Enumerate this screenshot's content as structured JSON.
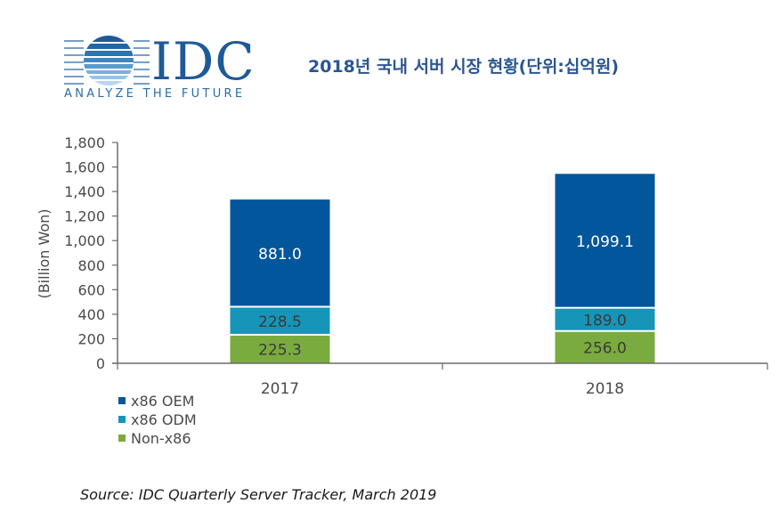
{
  "logo": {
    "brand": "IDC",
    "tagline": "ANALYZE THE FUTURE"
  },
  "header": {
    "title": "2018년 국내 서버 시장 현황(단위:십억원)"
  },
  "footer": {
    "source": "Source: IDC Quarterly Server Tracker, March 2019"
  },
  "chart_data": {
    "type": "bar",
    "stacked": true,
    "title": "2018년 국내 서버 시장 현황(단위:십억원)",
    "xlabel": "",
    "ylabel": "(Billion Won)",
    "ylim": [
      0,
      1800
    ],
    "yticks": [
      0,
      200,
      400,
      600,
      800,
      1000,
      1200,
      1400,
      1600,
      1800
    ],
    "ytick_labels": [
      "0",
      "200",
      "400",
      "600",
      "800",
      "1,000",
      "1,200",
      "1,400",
      "1,600",
      "1,800"
    ],
    "grid": false,
    "legend_position": "bottom-left",
    "categories": [
      "2017",
      "2018"
    ],
    "series": [
      {
        "name": "Non-x86",
        "color": "#7aab3e",
        "label_color": "#3a3a3a",
        "values": [
          225.3,
          256.0
        ],
        "labels": [
          "225.3",
          "256.0"
        ]
      },
      {
        "name": "x86 ODM",
        "color": "#1695b8",
        "label_color": "#3a3a3a",
        "values": [
          228.5,
          189.0
        ],
        "labels": [
          "228.5",
          "189.0"
        ]
      },
      {
        "name": "x86 OEM",
        "color": "#02569b",
        "label_color": "#ffffff",
        "values": [
          881.0,
          1099.1
        ],
        "labels": [
          "881.0",
          "1,099.1"
        ]
      }
    ],
    "legend_order": [
      "x86 OEM",
      "x86 ODM",
      "Non-x86"
    ],
    "axis_color": "#6b6b6b"
  }
}
